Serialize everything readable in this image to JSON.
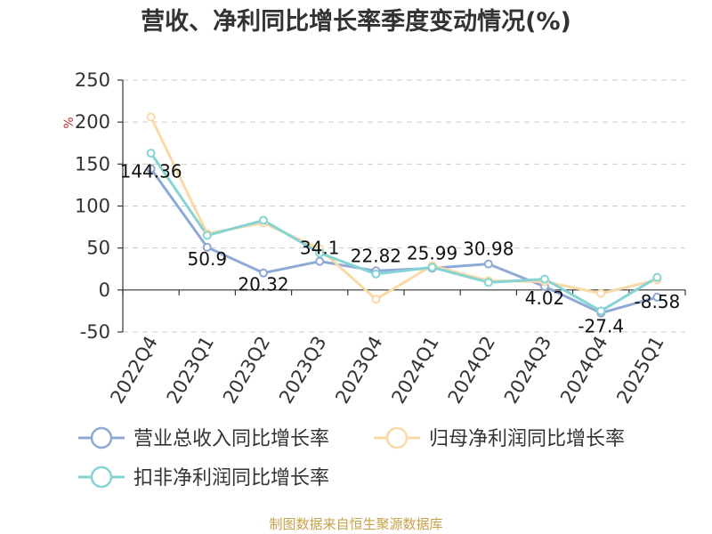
{
  "chart_data": {
    "type": "line",
    "title": "营收、净利同比增长率季度变动情况(%)",
    "unit_label": "%",
    "categories": [
      "2022Q4",
      "2023Q1",
      "2023Q2",
      "2023Q3",
      "2023Q4",
      "2024Q1",
      "2024Q2",
      "2024Q3",
      "2024Q4",
      "2025Q1"
    ],
    "y_ticks": [
      250,
      200,
      150,
      100,
      50,
      0,
      -50
    ],
    "ylim": [
      -50,
      250
    ],
    "grid": true,
    "legend_position": "bottom",
    "series": [
      {
        "name": "营业总收入同比增长率",
        "color": "#8fa9d6",
        "values": [
          144.36,
          50.9,
          20.32,
          34.1,
          22.82,
          25.99,
          30.98,
          4.02,
          -27.4,
          -8.58
        ],
        "labels": [
          "144.36",
          "50.9",
          "20.32",
          "34.1",
          "22.82",
          "25.99",
          "30.98",
          "4.02",
          "-27.4",
          "-8.58"
        ]
      },
      {
        "name": "归母净利润同比增长率",
        "color": "#f9d9a6",
        "values": [
          206,
          67,
          80,
          49,
          -11,
          29,
          11,
          10,
          -4,
          12
        ]
      },
      {
        "name": "扣非净利润同比增长率",
        "color": "#86d3d3",
        "values": [
          163,
          65,
          83,
          44,
          19,
          27,
          9,
          13,
          -25,
          15
        ]
      }
    ],
    "source": "制图数据来自恒生聚源数据库"
  }
}
